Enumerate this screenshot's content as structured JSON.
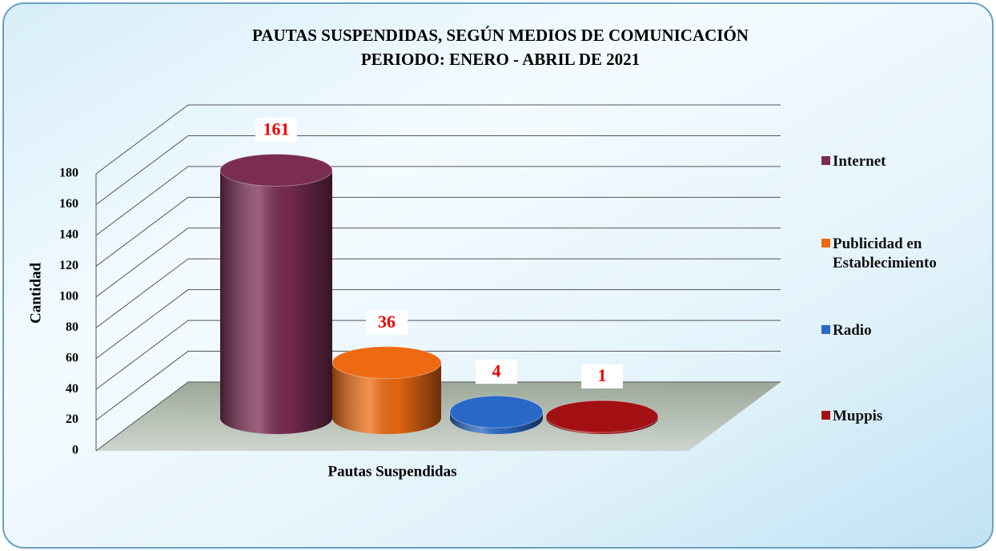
{
  "chart_data": {
    "type": "bar3d",
    "title": "PAUTAS SUSPENDIDAS, SEGÚN MEDIOS DE COMUNICACIÓN",
    "subtitle": "PERIODO:  ENERO - ABRIL DE  2021",
    "y_label": "Cantidad",
    "categories": [
      "Pautas Suspendidas"
    ],
    "series": [
      {
        "name": "Internet",
        "color": "#7a2c52",
        "values": [
          161
        ]
      },
      {
        "name": "Publicidad en Establecimiento",
        "color": "#ee6a12",
        "values": [
          36
        ]
      },
      {
        "name": "Radio",
        "color": "#2a68c8",
        "values": [
          4
        ]
      },
      {
        "name": "Muppis",
        "color": "#a31014",
        "values": [
          1
        ]
      }
    ],
    "ylim": [
      0,
      180
    ],
    "yticks": [
      0,
      20,
      40,
      60,
      80,
      100,
      120,
      140,
      160,
      180
    ],
    "grid": true,
    "legend": "right",
    "value_label_color": "#ee0000"
  }
}
